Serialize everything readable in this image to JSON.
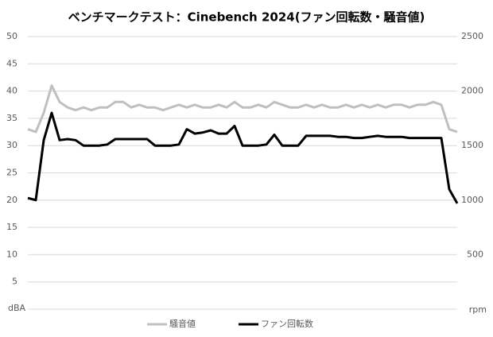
{
  "chart_data": {
    "type": "line",
    "title": "ベンチマークテスト：Cinebench 2024(ファン回転数・騒音値)",
    "y_label": "dBA",
    "y2_label": "rpm",
    "ylim": [
      0,
      50
    ],
    "yticks": [
      5,
      10,
      15,
      20,
      25,
      30,
      35,
      40,
      45,
      50
    ],
    "y2lim": [
      0,
      2500
    ],
    "y2ticks": [
      500,
      1000,
      1500,
      2000,
      2500
    ],
    "grid": true,
    "legend": "bottom",
    "series": [
      {
        "name": "騒音値",
        "color": "#bfbfbf",
        "values": [
          33,
          32.5,
          36,
          41,
          38,
          37,
          36.5,
          37,
          36.5,
          37,
          37,
          38,
          38,
          37,
          37.5,
          37,
          37,
          36.5,
          37,
          37.5,
          37,
          37.5,
          37,
          37,
          37.5,
          37,
          38,
          37,
          37,
          37.5,
          37,
          38,
          37.5,
          37,
          37,
          37.5,
          37,
          37.5,
          37,
          37,
          37.5,
          37,
          37.5,
          37,
          37.5,
          37,
          37.5,
          37.5,
          37,
          37.5,
          37.5,
          38,
          37.5,
          33,
          32.5
        ]
      },
      {
        "name": "ファン回転数",
        "color": "#000000",
        "axis": "y2",
        "values": [
          1020,
          1000,
          1550,
          1800,
          1550,
          1560,
          1550,
          1500,
          1500,
          1500,
          1510,
          1560,
          1560,
          1560,
          1560,
          1560,
          1500,
          1500,
          1500,
          1510,
          1650,
          1610,
          1620,
          1640,
          1610,
          1610,
          1680,
          1500,
          1500,
          1500,
          1510,
          1600,
          1500,
          1500,
          1500,
          1590,
          1590,
          1590,
          1590,
          1580,
          1580,
          1570,
          1570,
          1580,
          1590,
          1580,
          1580,
          1580,
          1570,
          1570,
          1570,
          1570,
          1570,
          1100,
          970
        ]
      }
    ]
  }
}
